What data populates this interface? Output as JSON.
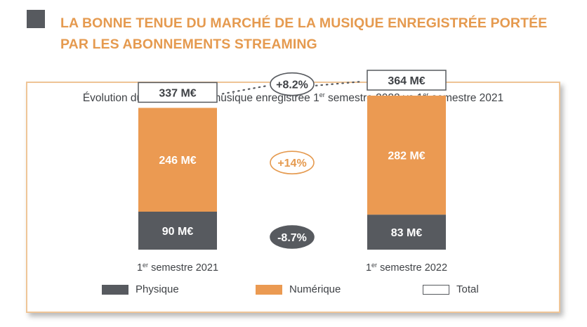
{
  "header": {
    "title": "LA BONNE TENUE DU MARCHÉ DE LA MUSIQUE ENREGISTRÉE PORTÉE PAR LES ABONNEMENTS STREAMING"
  },
  "colors": {
    "accent": "#e59a4f",
    "physique": "#575a5f",
    "numerique": "#eb9a52",
    "total_border": "#575a5f"
  },
  "chart_data": {
    "type": "bar",
    "stacked": true,
    "title": "Évolution du marché de la musique enregistrée 1er semestre 2022 vs 1er semestre 2021",
    "title_parts": [
      "Évolution du marché de la musique enregistrée 1",
      "er",
      " semestre 2022 vs 1",
      "er",
      " semestre 2021"
    ],
    "unit": "M€",
    "categories": [
      "1er semestre 2021",
      "1er semestre 2022"
    ],
    "category_parts": [
      [
        "1",
        "er",
        " semestre 2021"
      ],
      [
        "1",
        "er",
        " semestre 2022"
      ]
    ],
    "series": [
      {
        "name": "Physique",
        "values": [
          90,
          83
        ],
        "labels": [
          "90 M€",
          "83 M€"
        ]
      },
      {
        "name": "Numérique",
        "values": [
          246,
          282
        ],
        "labels": [
          "246 M€",
          "282 M€"
        ]
      }
    ],
    "totals": {
      "name": "Total",
      "values": [
        337,
        364
      ],
      "labels": [
        "337 M€",
        "364 M€"
      ]
    },
    "changes": [
      {
        "series": "Total",
        "label": "+8.2%"
      },
      {
        "series": "Numérique",
        "label": "+14%"
      },
      {
        "series": "Physique",
        "label": "-8.7%"
      }
    ],
    "legend": [
      "Physique",
      "Numérique",
      "Total"
    ],
    "legend_position": "bottom",
    "grid": false
  }
}
